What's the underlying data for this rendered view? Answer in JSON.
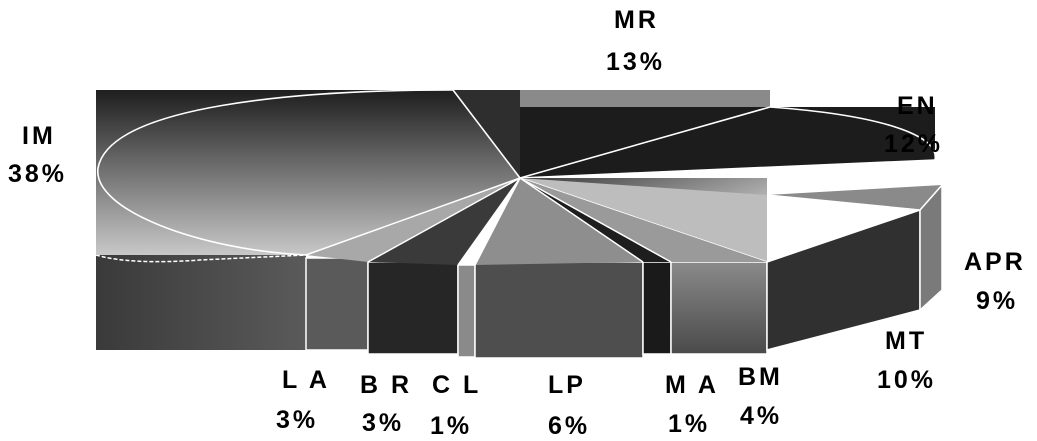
{
  "chart_data": {
    "type": "pie",
    "style": "3d-exploded",
    "slices": [
      {
        "label": "IM",
        "value": 38,
        "value_label": "38%",
        "color": "#8c8c8c"
      },
      {
        "label": "MR",
        "value": 13,
        "value_label": "13%",
        "color": "#2e2e2e"
      },
      {
        "label": "EN",
        "value": 12,
        "value_label": "12%",
        "color": "#1a1a1a"
      },
      {
        "label": "APR",
        "value": 9,
        "value_label": "9%",
        "color": "#d6d6d6"
      },
      {
        "label": "MT",
        "value": 10,
        "value_label": "10%",
        "color": "#3a3a3a"
      },
      {
        "label": "BM",
        "value": 4,
        "value_label": "4%",
        "color": "#6e6e6e"
      },
      {
        "label": "M A",
        "value": 1,
        "value_label": "1%",
        "color": "#1e1e1e"
      },
      {
        "label": "LP",
        "value": 6,
        "value_label": "6%",
        "color": "#8a8a8a"
      },
      {
        "label": "C L",
        "value": 1,
        "value_label": "1%",
        "color": "#ffffff"
      },
      {
        "label": "B R",
        "value": 3,
        "value_label": "3%",
        "color": "#2a2a2a"
      },
      {
        "label": "L A",
        "value": 3,
        "value_label": "3%",
        "color": "#a0a0a0"
      }
    ]
  }
}
